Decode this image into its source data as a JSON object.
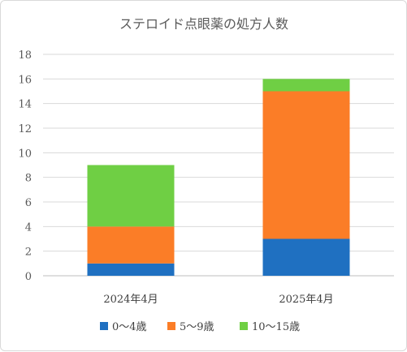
{
  "chart_data": {
    "type": "bar",
    "stacked": true,
    "title": "ステロイド点眼薬の処方人数",
    "categories": [
      "2024年4月",
      "2025年4月"
    ],
    "series": [
      {
        "name": "0〜4歳",
        "color": "#1f70c1",
        "values": [
          1,
          3
        ]
      },
      {
        "name": "5〜9歳",
        "color": "#fb7d27",
        "values": [
          3,
          12
        ]
      },
      {
        "name": "10〜15歳",
        "color": "#6fcf44",
        "values": [
          5,
          1
        ]
      }
    ],
    "ylim": [
      0,
      18
    ],
    "yticks": [
      0,
      2,
      4,
      6,
      8,
      10,
      12,
      14,
      16,
      18
    ],
    "grid": true,
    "legend": "bottom"
  }
}
